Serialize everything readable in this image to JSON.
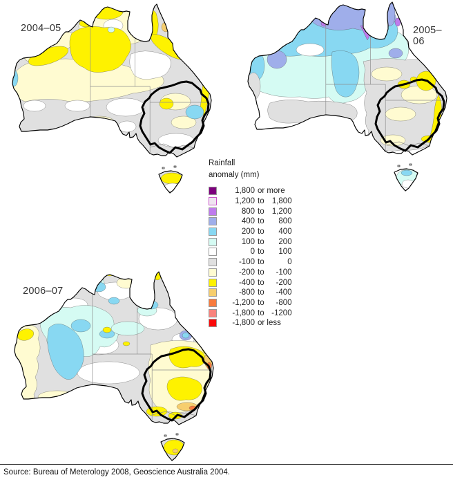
{
  "maps": [
    {
      "title": "2004–05"
    },
    {
      "title": "2005–06"
    },
    {
      "title": "2006–07"
    }
  ],
  "legend": {
    "title_line1": "Rainfall",
    "title_line2": "anomaly  (mm)",
    "items": [
      {
        "key": "p1800",
        "v1": "1,800",
        "joiner": "or more",
        "v2": ""
      },
      {
        "key": "p1200",
        "v1": "1,200",
        "joiner": "to",
        "v2": "1,800"
      },
      {
        "key": "p800",
        "v1": "800",
        "joiner": "to",
        "v2": "1,200"
      },
      {
        "key": "p400",
        "v1": "400",
        "joiner": "to",
        "v2": "800"
      },
      {
        "key": "p200",
        "v1": "200",
        "joiner": "to",
        "v2": "400"
      },
      {
        "key": "p100",
        "v1": "100",
        "joiner": "to",
        "v2": "200"
      },
      {
        "key": "zero",
        "v1": "0",
        "joiner": "to",
        "v2": "100"
      },
      {
        "key": "n100",
        "v1": "-100",
        "joiner": "to",
        "v2": "0"
      },
      {
        "key": "n200",
        "v1": "-200",
        "joiner": "to",
        "v2": "-100"
      },
      {
        "key": "n400",
        "v1": "-400",
        "joiner": "to",
        "v2": "-200"
      },
      {
        "key": "n800",
        "v1": "-800",
        "joiner": "to",
        "v2": "-400"
      },
      {
        "key": "n1200",
        "v1": "-1,200",
        "joiner": "to",
        "v2": "-800"
      },
      {
        "key": "n1800",
        "v1": "-1,800",
        "joiner": "to",
        "v2": "-1200"
      },
      {
        "key": "nmore",
        "v1": "-1,800",
        "joiner": "or less",
        "v2": ""
      }
    ]
  },
  "colors": {
    "p1800": "#7D007D",
    "p1200": "#EFE4F0",
    "p1200_border": "#C957C9",
    "p800": "#BE7BEC",
    "p400": "#9FAEEA",
    "p200": "#88D8F2",
    "p100": "#D5FBF3",
    "zero": "#FFFFFF",
    "n100": "#E0E0E0",
    "n200": "#FFFBD1",
    "n400": "#FEF200",
    "n800": "#F6CE6E",
    "n1200": "#F87B3E",
    "n1800": "#F9837D",
    "nmore": "#FA0A0A"
  },
  "source": "Source: Bureau of Meterology 2008, Geoscience Australia 2004."
}
